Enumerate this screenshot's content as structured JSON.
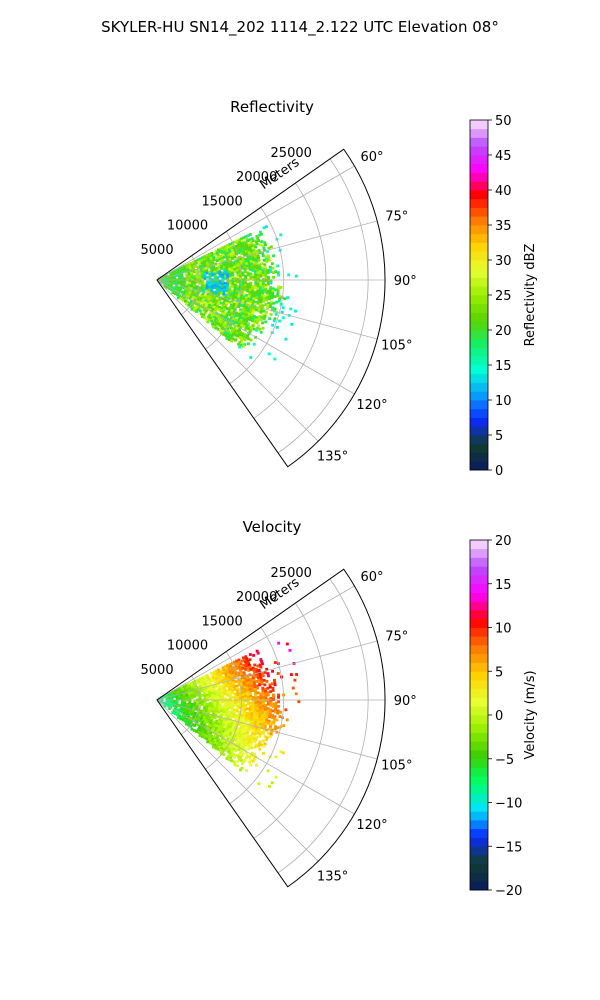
{
  "figure": {
    "suptitle": "SKYLER-HU  SN14_202  1114_2.122 UTC Elevation 08°"
  },
  "chart_data": [
    {
      "type": "heatmap",
      "projection": "polar-sector",
      "title": "Reflectivity",
      "radial_label": "Meters",
      "r_ticks": [
        "5000",
        "10000",
        "15000",
        "20000",
        "25000"
      ],
      "r_tick_values": [
        5000,
        10000,
        15000,
        20000,
        25000
      ],
      "r_max": 27000,
      "theta_ticks": [
        "60°",
        "75°",
        "90°",
        "105°",
        "120°",
        "135°"
      ],
      "theta_tick_values": [
        60,
        75,
        90,
        105,
        120,
        135
      ],
      "theta_range": [
        55,
        145
      ],
      "grid": true,
      "colorbar": {
        "label": "Reflectivity dBZ",
        "ticks": [
          "0",
          "5",
          "10",
          "15",
          "20",
          "25",
          "30",
          "35",
          "40",
          "45",
          "50"
        ],
        "range": [
          0,
          50
        ],
        "colormap": [
          "#0a1a5e",
          "#123d2e",
          "#0a2bff",
          "#0a9cff",
          "#00ffd5",
          "#14f06a",
          "#5ad400",
          "#9aee00",
          "#e8ff30",
          "#ffd000",
          "#ff7a00",
          "#ff0000",
          "#ff00ff",
          "#b84cff",
          "#ffe6ff"
        ]
      },
      "echo": {
        "azimuth_range": [
          64,
          130
        ],
        "max_range": 15500,
        "dominant_dbz": [
          18,
          27
        ],
        "near_field_dbz": 20,
        "gap_dbz": 12
      }
    },
    {
      "type": "heatmap",
      "projection": "polar-sector",
      "title": "Velocity",
      "radial_label": "Meters",
      "r_ticks": [
        "5000",
        "10000",
        "15000",
        "20000",
        "25000"
      ],
      "r_tick_values": [
        5000,
        10000,
        15000,
        20000,
        25000
      ],
      "r_max": 27000,
      "theta_ticks": [
        "60°",
        "75°",
        "90°",
        "105°",
        "120°",
        "135°"
      ],
      "theta_tick_values": [
        60,
        75,
        90,
        105,
        120,
        135
      ],
      "theta_range": [
        55,
        145
      ],
      "grid": true,
      "colorbar": {
        "label": "Velocity (m/s)",
        "ticks": [
          "−20",
          "−15",
          "−10",
          "−5",
          "0",
          "5",
          "10",
          "15",
          "20"
        ],
        "range": [
          -20,
          20
        ],
        "colormap": [
          "#0a1a5e",
          "#123d2e",
          "#0a2bff",
          "#00e5ff",
          "#00ff6a",
          "#3ccf00",
          "#9aee00",
          "#e8ff30",
          "#ffd000",
          "#ff7a00",
          "#ff0000",
          "#ff00ff",
          "#b84cff",
          "#ffe6ff"
        ]
      },
      "echo": {
        "azimuth_range": [
          64,
          130
        ],
        "max_range": 15500,
        "near_velocity": -10,
        "far_north_velocity": 15,
        "far_south_velocity": 2
      }
    }
  ]
}
